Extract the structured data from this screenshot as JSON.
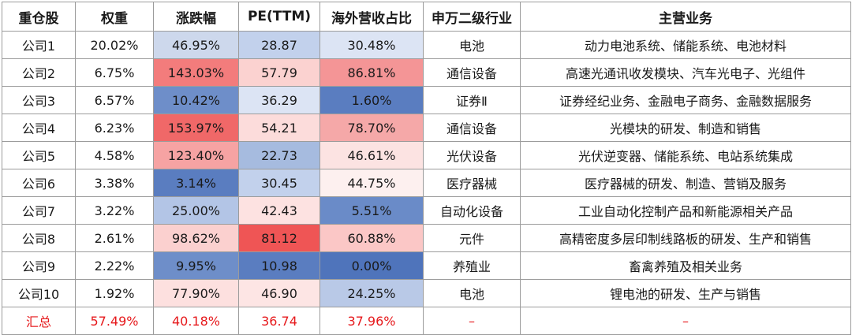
{
  "table": {
    "headers": [
      "重仓股",
      "权重",
      "涨跌幅",
      "PE(TTM)",
      "海外营收占比",
      "申万二级行业",
      "主营业务"
    ],
    "rows": [
      [
        "公司1",
        "20.02%",
        "46.95%",
        "28.87",
        "30.48%",
        "电池",
        "动力电池系统、储能系统、电池材料"
      ],
      [
        "公司2",
        "6.75%",
        "143.03%",
        "57.79",
        "86.81%",
        "通信设备",
        "高速光通讯收发模块、汽车光电子、光组件"
      ],
      [
        "公司3",
        "6.57%",
        "10.42%",
        "36.29",
        "1.60%",
        "证券Ⅱ",
        "证券经纪业务、金融电子商务、金融数据服务"
      ],
      [
        "公司4",
        "6.23%",
        "153.97%",
        "54.21",
        "78.70%",
        "通信设备",
        "光模块的研发、制造和销售"
      ],
      [
        "公司5",
        "4.58%",
        "123.40%",
        "22.73",
        "46.61%",
        "光伏设备",
        "光伏逆变器、储能系统、电站系统集成"
      ],
      [
        "公司6",
        "3.38%",
        "3.14%",
        "30.45",
        "44.75%",
        "医疗器械",
        "医疗器械的研发、制造、营销及服务"
      ],
      [
        "公司7",
        "3.22%",
        "25.00%",
        "42.43",
        "5.51%",
        "自动化设备",
        "工业自动化控制产品和新能源相关产品"
      ],
      [
        "公司8",
        "2.61%",
        "98.62%",
        "81.12",
        "60.88%",
        "元件",
        "高精密度多层印制线路板的研发、生产和销售"
      ],
      [
        "公司9",
        "2.22%",
        "9.95%",
        "10.98",
        "0.00%",
        "养殖业",
        "畜禽养殖及相关业务"
      ],
      [
        "公司10",
        "1.92%",
        "77.90%",
        "46.90",
        "24.25%",
        "电池",
        "锂电池的研发、生产与销售"
      ]
    ],
    "total": [
      "汇总",
      "57.49%",
      "40.18%",
      "36.74",
      "37.96%",
      "–",
      "–"
    ],
    "cell_colors": [
      [
        "#cdd8ec",
        "#c2d1ec",
        "#dce4f4"
      ],
      [
        "#f37c7c",
        "#fbd2d0",
        "#f49596"
      ],
      [
        "#6e8ec9",
        "#dce4f4",
        "#5a7dc0"
      ],
      [
        "#f06868",
        "#fcdcdb",
        "#f5a8a8"
      ],
      [
        "#f6a3a3",
        "#a6bbdf",
        "#fce3e2"
      ],
      [
        "#5a7dc0",
        "#c2d1ec",
        "#fdf0ef"
      ],
      [
        "#b3c5e6",
        "#fde2e1",
        "#6a8bc8"
      ],
      [
        "#fbd0cf",
        "#ef5555",
        "#fbc7c6"
      ],
      [
        "#6e8ec9",
        "#5a7dc0",
        "#4f74bb"
      ],
      [
        "#fde0df",
        "#fde5e4",
        "#b9c9e7"
      ]
    ],
    "total_color": "#e6191c"
  }
}
